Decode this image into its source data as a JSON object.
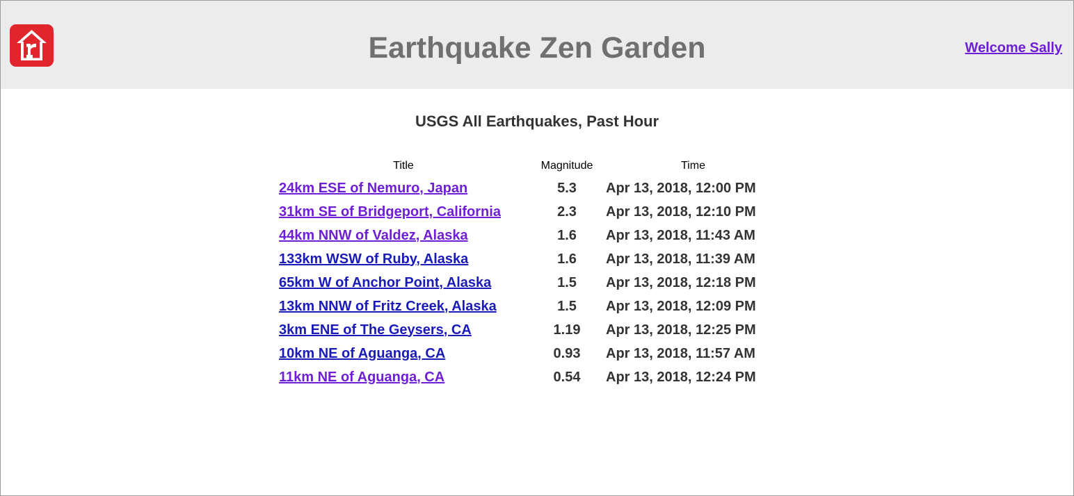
{
  "header": {
    "app_title": "Earthquake Zen Garden",
    "welcome_link": "Welcome Sally",
    "logo_icon": "realtor-house-logo-icon",
    "logo_color": "#e0262c"
  },
  "feed": {
    "title": "USGS All Earthquakes, Past Hour",
    "columns": [
      "Title",
      "Magnitude",
      "Time"
    ],
    "rows": [
      {
        "title": "24km ESE of Nemuro, Japan",
        "magnitude": "5.3",
        "time": "Apr 13, 2018, 12:00 PM",
        "link_state": "visited"
      },
      {
        "title": "31km SE of Bridgeport, California",
        "magnitude": "2.3",
        "time": "Apr 13, 2018, 12:10 PM",
        "link_state": "visited"
      },
      {
        "title": "44km NNW of Valdez, Alaska",
        "magnitude": "1.6",
        "time": "Apr 13, 2018, 11:43 AM",
        "link_state": "visited"
      },
      {
        "title": "133km WSW of Ruby, Alaska",
        "magnitude": "1.6",
        "time": "Apr 13, 2018, 11:39 AM",
        "link_state": "unvisited"
      },
      {
        "title": "65km W of Anchor Point, Alaska",
        "magnitude": "1.5",
        "time": "Apr 13, 2018, 12:18 PM",
        "link_state": "unvisited"
      },
      {
        "title": "13km NNW of Fritz Creek, Alaska",
        "magnitude": "1.5",
        "time": "Apr 13, 2018, 12:09 PM",
        "link_state": "unvisited"
      },
      {
        "title": "3km ENE of The Geysers, CA",
        "magnitude": "1.19",
        "time": "Apr 13, 2018, 12:25 PM",
        "link_state": "unvisited"
      },
      {
        "title": "10km NE of Aguanga, CA",
        "magnitude": "0.93",
        "time": "Apr 13, 2018, 11:57 AM",
        "link_state": "unvisited"
      },
      {
        "title": "11km NE of Aguanga, CA",
        "magnitude": "0.54",
        "time": "Apr 13, 2018, 12:24 PM",
        "link_state": "visited"
      }
    ]
  },
  "colors": {
    "header_bg": "#ececec",
    "visited_link": "#6e1fd6",
    "unvisited_link": "#1a1ab8",
    "title_gray": "#707070"
  }
}
